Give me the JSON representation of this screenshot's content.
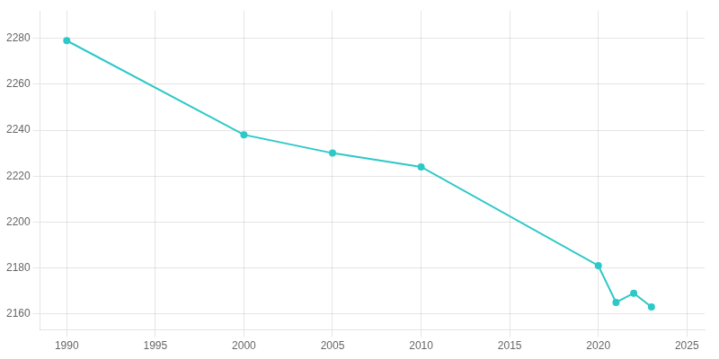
{
  "chart_data": {
    "type": "line",
    "x": [
      1990,
      2000,
      2005,
      2010,
      2020,
      2021,
      2022,
      2023
    ],
    "values": [
      2279,
      2238,
      2230,
      2224,
      2181,
      2165,
      2169,
      2163
    ],
    "color": "#2ec8c8",
    "marker": "circle",
    "line_style": "solid",
    "xlim": [
      1988.5,
      2026
    ],
    "xticks": [
      1990,
      1995,
      2000,
      2005,
      2010,
      2015,
      2020,
      2025
    ],
    "ylim": [
      2153,
      2292
    ],
    "yticks": [
      2160,
      2180,
      2200,
      2220,
      2240,
      2260,
      2280
    ],
    "grid": true
  }
}
